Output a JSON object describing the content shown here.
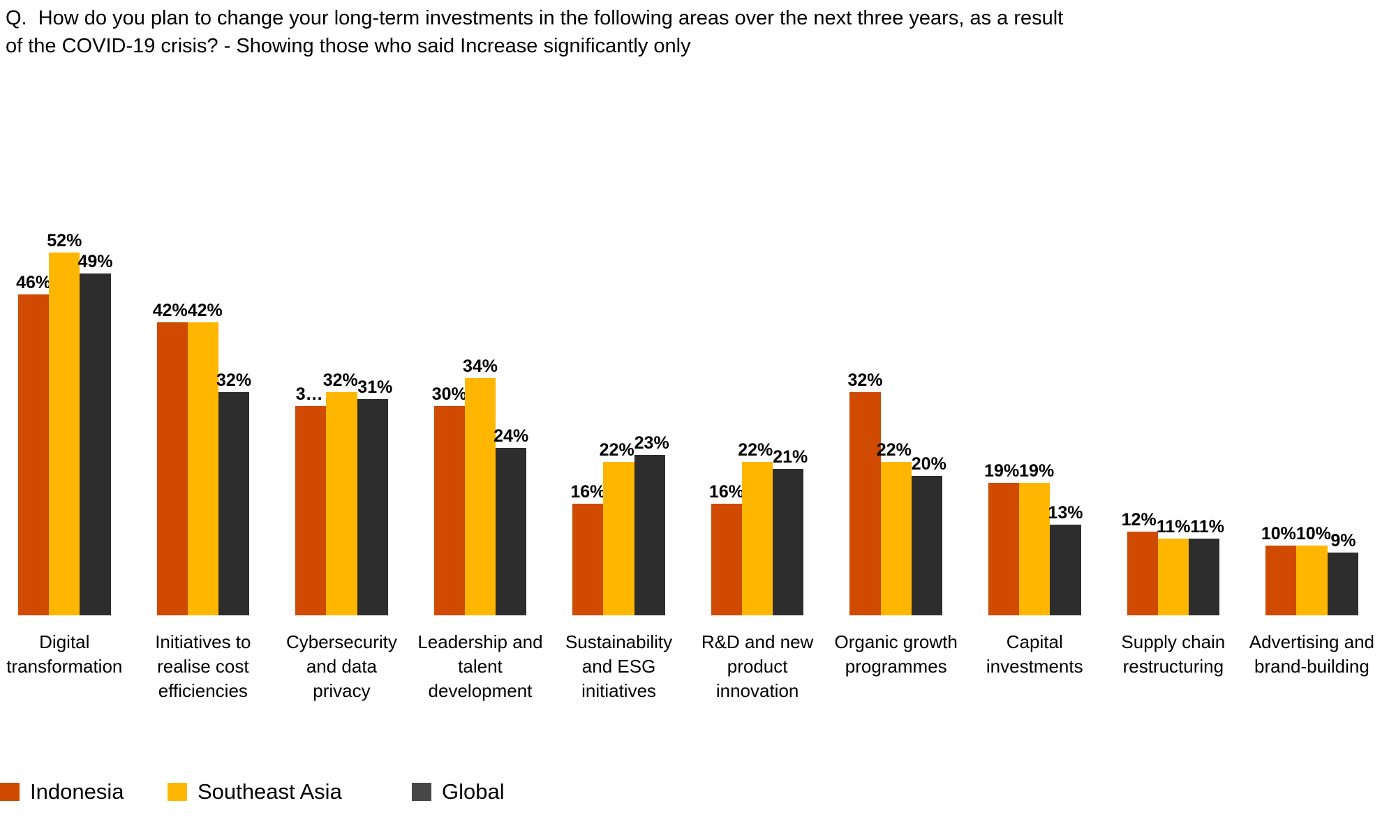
{
  "title": "Q.  How do you plan to change your long-term investments in the following areas over the next three years, as a result\nof the COVID-19 crisis? - Showing those who said Increase significantly only",
  "chart_data": {
    "type": "bar",
    "unit": "%",
    "title": "How do you plan to change your long-term investments in the following areas over the next three years, as a result of the COVID-19 crisis? - Showing those who said Increase significantly only",
    "categories": [
      "Digital transformation",
      "Initiatives to realise cost efficiencies",
      "Cybersecurity and data privacy",
      "Leadership and talent development",
      "Sustainability and ESG initiatives",
      "R&D and new product innovation",
      "Organic growth programmes",
      "Capital investments",
      "Supply chain restructuring",
      "Advertising and brand-building"
    ],
    "series": [
      {
        "name": "Indonesia",
        "color": "#d04a02",
        "values": [
          46,
          42,
          30,
          30,
          16,
          16,
          32,
          19,
          12,
          10
        ],
        "display_labels": [
          "46%",
          "42%",
          "3…",
          "30%",
          "16%",
          "16%",
          "32%",
          "19%",
          "12%",
          "10%"
        ]
      },
      {
        "name": "Southeast Asia",
        "color": "#ffb600",
        "values": [
          52,
          42,
          32,
          34,
          22,
          22,
          22,
          19,
          11,
          10
        ],
        "display_labels": [
          "52%",
          "42%",
          "32%",
          "34%",
          "22%",
          "22%",
          "22%",
          "19%",
          "11%",
          "10%"
        ]
      },
      {
        "name": "Global",
        "color": "#2d2d2d",
        "values": [
          49,
          32,
          31,
          24,
          23,
          21,
          20,
          13,
          11,
          9
        ],
        "display_labels": [
          "49%",
          "32%",
          "31%",
          "24%",
          "23%",
          "21%",
          "20%",
          "13%",
          "11%",
          "9%"
        ]
      }
    ],
    "ylim": [
      0,
      64
    ],
    "grid": false,
    "axes_hidden": true,
    "data_labels": "outside-end",
    "legend_position": "bottom-left"
  },
  "legend": {
    "items": [
      {
        "label": "Indonesia",
        "color": "#d04a02"
      },
      {
        "label": "Southeast Asia",
        "color": "#ffb600"
      },
      {
        "label": "Global",
        "color": "#474747"
      }
    ]
  }
}
